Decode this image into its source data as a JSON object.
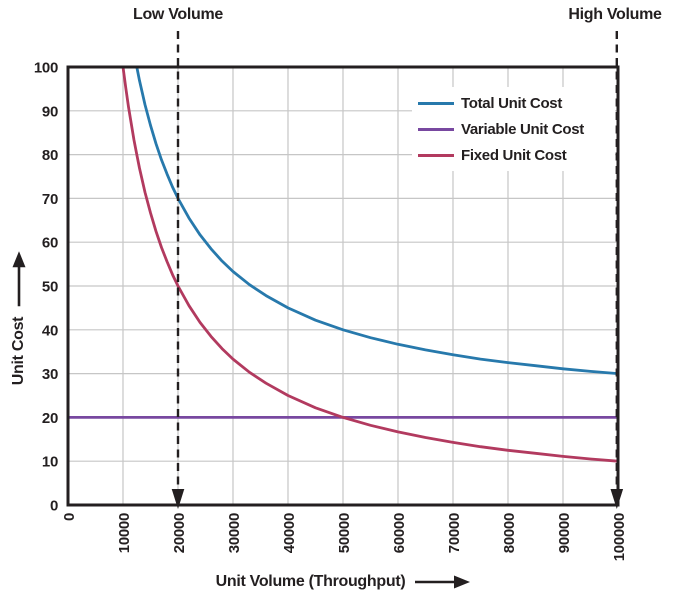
{
  "colors": {
    "text": "#231F20",
    "axis": "#231F20",
    "grid": "#C6C6C6",
    "annotation": "#231F20",
    "background": "#FFFFFF"
  },
  "chart_data": {
    "type": "line",
    "title": "",
    "xlabel": "Unit Volume (Throughput)",
    "ylabel": "Unit Cost",
    "xlim": [
      0,
      100000
    ],
    "ylim": [
      0,
      100
    ],
    "x_ticks": [
      0,
      10000,
      20000,
      30000,
      40000,
      50000,
      60000,
      70000,
      80000,
      90000,
      100000
    ],
    "y_ticks": [
      0,
      10,
      20,
      30,
      40,
      50,
      60,
      70,
      80,
      90,
      100
    ],
    "grid": true,
    "legend_position": "top-right-inside",
    "series": [
      {
        "name": "Total Unit Cost",
        "color": "#2779AC",
        "points": [
          [
            12500,
            100
          ],
          [
            13000,
            96.9
          ],
          [
            13500,
            94.1
          ],
          [
            14000,
            91.4
          ],
          [
            15000,
            86.7
          ],
          [
            16000,
            82.5
          ],
          [
            17000,
            78.8
          ],
          [
            18000,
            75.6
          ],
          [
            19000,
            72.6
          ],
          [
            20000,
            70
          ],
          [
            22000,
            65.5
          ],
          [
            24000,
            61.7
          ],
          [
            26000,
            58.5
          ],
          [
            28000,
            55.7
          ],
          [
            30000,
            53.3
          ],
          [
            33000,
            50.3
          ],
          [
            36000,
            47.8
          ],
          [
            40000,
            45
          ],
          [
            45000,
            42.2
          ],
          [
            50000,
            40
          ],
          [
            55000,
            38.2
          ],
          [
            60000,
            36.7
          ],
          [
            65000,
            35.4
          ],
          [
            70000,
            34.3
          ],
          [
            75000,
            33.3
          ],
          [
            80000,
            32.5
          ],
          [
            85000,
            31.8
          ],
          [
            90000,
            31.1
          ],
          [
            95000,
            30.5
          ],
          [
            100000,
            30
          ]
        ]
      },
      {
        "name": "Variable Unit Cost",
        "color": "#7848A0",
        "points": [
          [
            0,
            20
          ],
          [
            100000,
            20
          ]
        ]
      },
      {
        "name": "Fixed Unit Cost",
        "color": "#B23A5F",
        "points": [
          [
            10000,
            100
          ],
          [
            10500,
            95.2
          ],
          [
            11000,
            90.9
          ],
          [
            11500,
            87
          ],
          [
            12000,
            83.3
          ],
          [
            12500,
            80
          ],
          [
            13000,
            76.9
          ],
          [
            14000,
            71.4
          ],
          [
            15000,
            66.7
          ],
          [
            16000,
            62.5
          ],
          [
            17000,
            58.8
          ],
          [
            18000,
            55.6
          ],
          [
            19000,
            52.6
          ],
          [
            20000,
            50
          ],
          [
            22000,
            45.5
          ],
          [
            24000,
            41.7
          ],
          [
            26000,
            38.5
          ],
          [
            28000,
            35.7
          ],
          [
            30000,
            33.3
          ],
          [
            33000,
            30.3
          ],
          [
            36000,
            27.8
          ],
          [
            40000,
            25
          ],
          [
            45000,
            22.2
          ],
          [
            50000,
            20
          ],
          [
            55000,
            18.2
          ],
          [
            60000,
            16.7
          ],
          [
            65000,
            15.4
          ],
          [
            70000,
            14.3
          ],
          [
            75000,
            13.3
          ],
          [
            80000,
            12.5
          ],
          [
            85000,
            11.8
          ],
          [
            90000,
            11.1
          ],
          [
            95000,
            10.5
          ],
          [
            100000,
            10
          ]
        ]
      }
    ],
    "annotations": [
      {
        "label": "Low Volume",
        "x": 20000
      },
      {
        "label": "High Volume",
        "x": 100000
      }
    ]
  }
}
